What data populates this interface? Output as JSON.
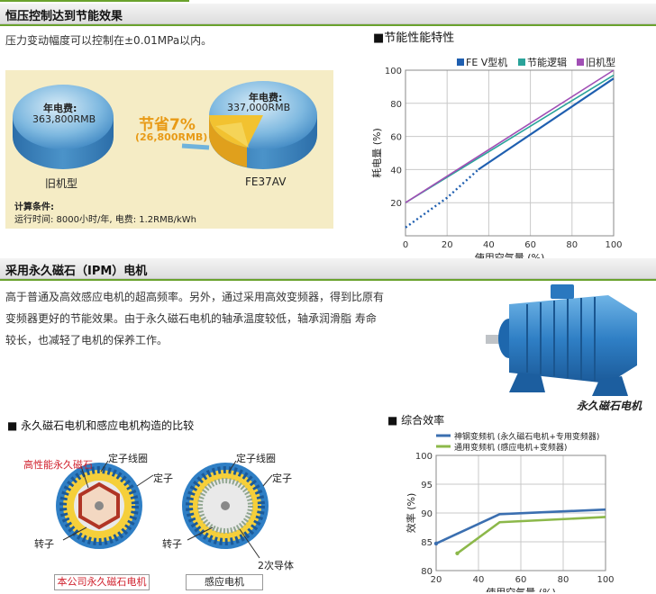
{
  "section1": {
    "title": "恒压控制达到节能效果",
    "desc": "压力变动幅度可以控制在±0.01MPa以内。"
  },
  "pie_panel": {
    "old_label_cost": "年电费:",
    "old_value": "363,800RMB",
    "old_name": "旧机型",
    "new_label_cost": "年电费:",
    "new_value": "337,000RMB",
    "new_name": "FE37AV",
    "saving_title": "节省7%",
    "saving_value": "(26,800RMB)",
    "calc_title": "计算条件:",
    "calc_text": "运行时间: 8000小时/年, 电费: 1.2RMB/kWh"
  },
  "chart1": {
    "heading": "■节能性能特性",
    "chart_data": {
      "type": "line",
      "xlabel": "使用空气量 (%)",
      "ylabel": "耗电量 (%)",
      "xlim": [
        0,
        100
      ],
      "ylim": [
        0,
        100
      ],
      "ticks_x": [
        "0",
        "20",
        "40",
        "60",
        "80",
        "100"
      ],
      "ticks_y": [
        "20",
        "40",
        "60",
        "80",
        "100"
      ],
      "grid": true,
      "legend_position": "top",
      "series": [
        {
          "name": "FE V型机",
          "color": "#1f5fb0",
          "x": [
            0,
            20,
            35,
            100
          ],
          "y": [
            5,
            23,
            40,
            95
          ],
          "dotted_to_x": 35
        },
        {
          "name": "节能逻辑",
          "color": "#2aa39a",
          "x": [
            0,
            100
          ],
          "y": [
            20,
            97
          ]
        },
        {
          "name": "旧机型",
          "color": "#a14fb5",
          "x": [
            0,
            100
          ],
          "y": [
            20,
            100
          ]
        }
      ]
    }
  },
  "section2": {
    "title": "采用永久磁石（IPM）电机",
    "para": [
      "高于普通及高效感应电机的超高频率。另外，通过采用高效变频器，得到比原有",
      "变频器更好的节能效果。由于永久磁石电机的轴承温度较低，轴承润滑脂 寿命",
      "较长，也减轻了电机的保养工作。"
    ],
    "motor_caption": "永久磁石电机"
  },
  "structure": {
    "heading": "■ 永久磁石电机和感应电机构造的比较",
    "left_labels": {
      "magnet": "高性能永久磁石",
      "coil": "定子线圈",
      "stator": "定子",
      "rotor": "转子"
    },
    "left_caption": "本公司永久磁石电机",
    "right_labels": {
      "coil": "定子线圈",
      "stator": "定子",
      "rotor": "转子",
      "conductor": "2次导体"
    },
    "right_caption": "感应电机"
  },
  "chart2": {
    "heading": "■ 综合效率",
    "chart_data": {
      "type": "line",
      "xlabel": "使用空气量 (%)",
      "ylabel": "效率 (%)",
      "xlim": [
        20,
        100
      ],
      "ylim": [
        80,
        100
      ],
      "ticks_x": [
        "20",
        "40",
        "60",
        "80",
        "100"
      ],
      "ticks_y": [
        "80",
        "85",
        "90",
        "95",
        "100"
      ],
      "grid": true,
      "legend_position": "top",
      "series": [
        {
          "name": "神钢变频机 (永久磁石电机+专用变频器)",
          "color": "#3b6fb0",
          "x": [
            20,
            50,
            100
          ],
          "y": [
            84.7,
            89.8,
            90.6
          ]
        },
        {
          "name": "通用变频机 (感应电机+变频器)",
          "color": "#8cb84a",
          "x": [
            30,
            50,
            100
          ],
          "y": [
            83,
            88.4,
            89.3
          ]
        }
      ]
    }
  }
}
